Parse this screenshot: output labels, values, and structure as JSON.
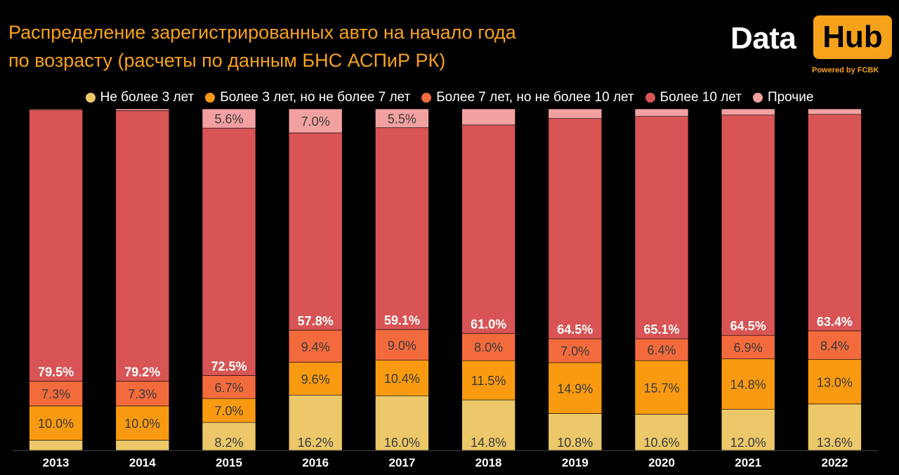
{
  "title_line1": "Распределение зарегистрированных авто на начало года",
  "title_line2": "по возрасту (расчеты по данным БНС АСПиР РК)",
  "logo": {
    "part1": "Data",
    "part2": "Hub",
    "powered": "Powered by FCBK"
  },
  "colors": {
    "background": "#000000",
    "accent": "#f7a21b",
    "series": [
      "#ecc86a",
      "#f99a10",
      "#f36b3d",
      "#d85455",
      "#f2a1a0"
    ]
  },
  "chart_data": {
    "type": "bar",
    "stacked": true,
    "categories": [
      "2013",
      "2014",
      "2015",
      "2016",
      "2017",
      "2018",
      "2019",
      "2020",
      "2021",
      "2022"
    ],
    "series": [
      {
        "name": "Не более 3 лет",
        "values": [
          3.0,
          3.0,
          8.2,
          16.2,
          16.0,
          14.8,
          10.8,
          10.6,
          12.0,
          13.6
        ],
        "labels": [
          "",
          "",
          "8.2%",
          "16.2%",
          "16.0%",
          "14.8%",
          "10.8%",
          "10.6%",
          "12.0%",
          "13.6%"
        ]
      },
      {
        "name": "Более 3 лет, но не более 7 лет",
        "values": [
          10.0,
          10.0,
          7.0,
          9.6,
          10.4,
          11.5,
          14.9,
          15.7,
          14.8,
          13.0
        ],
        "labels": [
          "10.0%",
          "10.0%",
          "7.0%",
          "9.6%",
          "10.4%",
          "11.5%",
          "14.9%",
          "15.7%",
          "14.8%",
          "13.0%"
        ]
      },
      {
        "name": "Более 7 лет, но не более 10 лет",
        "values": [
          7.3,
          7.3,
          6.7,
          9.4,
          9.0,
          8.0,
          7.0,
          6.4,
          6.9,
          8.4
        ],
        "labels": [
          "7.3%",
          "7.3%",
          "6.7%",
          "9.4%",
          "9.0%",
          "8.0%",
          "7.0%",
          "6.4%",
          "6.9%",
          "8.4%"
        ]
      },
      {
        "name": "Более 10 лет",
        "values": [
          79.5,
          79.2,
          72.5,
          57.8,
          59.1,
          61.0,
          64.5,
          65.1,
          64.5,
          63.4
        ],
        "labels": [
          "79.5%",
          "79.2%",
          "72.5%",
          "57.8%",
          "59.1%",
          "61.0%",
          "64.5%",
          "65.1%",
          "64.5%",
          "63.4%"
        ]
      },
      {
        "name": "Прочие",
        "values": [
          0.2,
          0.5,
          5.6,
          7.0,
          5.5,
          4.7,
          2.8,
          2.2,
          1.8,
          1.6
        ],
        "labels": [
          "",
          "",
          "5.6%",
          "7.0%",
          "5.5%",
          "",
          "",
          "",
          "",
          ""
        ]
      }
    ],
    "ylim": [
      0,
      100
    ],
    "legend_position": "top",
    "grid": false
  }
}
